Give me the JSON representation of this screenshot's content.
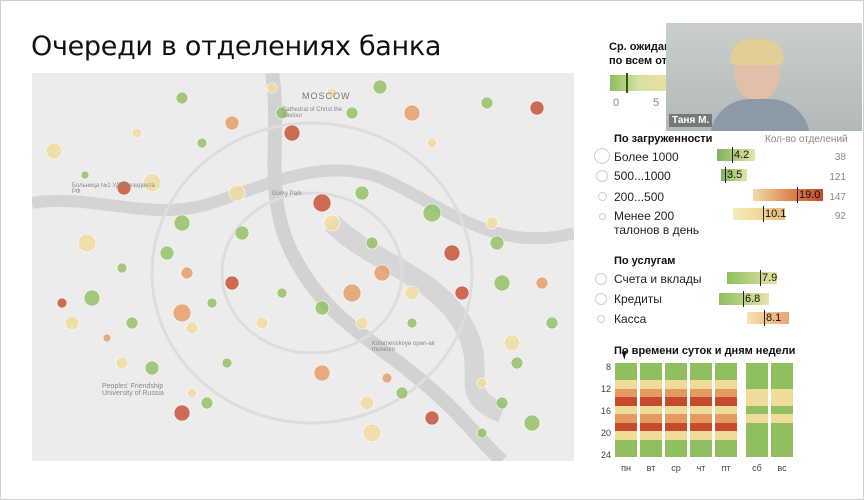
{
  "title": "Очереди в отделениях банка",
  "map": {
    "labels": {
      "moscow": "MOSCOW",
      "cathedral": "Cathedral of Christ the Saviour",
      "hospital": "Больница №1 УД Президента РФ",
      "university": "Peoples' Friendship University of Russia",
      "kolomenskoye": "Kolomenskoye open-air museum",
      "gorky": "Gorky Park"
    }
  },
  "legend": {
    "avg_title": "Ср. ожидание",
    "avg_sub": "по всем отд",
    "scale": [
      "0",
      "5"
    ],
    "load_title": "По загруженности",
    "count_header": "Кол-во отделений",
    "load_rows": [
      {
        "label": "Более 1000",
        "value": "4.2",
        "count": "38"
      },
      {
        "label": "500...1000",
        "value": "3.5",
        "count": "121"
      },
      {
        "label": "200...500",
        "value": "19.0",
        "count": "147"
      },
      {
        "label": "Менее 200",
        "label2": "талонов в день",
        "value": "10.1",
        "count": "92"
      }
    ],
    "services_title": "По услугам",
    "service_rows": [
      {
        "label": "Счета и вклады",
        "value": "7.9"
      },
      {
        "label": "Кредиты",
        "value": "6.8"
      },
      {
        "label": "Касса",
        "value": "8.1"
      }
    ],
    "time_title": "По времени суток и дням недели",
    "hours": [
      "8",
      "12",
      "16",
      "20",
      "24"
    ],
    "days": [
      "пн",
      "вт",
      "ср",
      "чт",
      "пт",
      "сб",
      "вс"
    ]
  },
  "video": {
    "name": "Таня М."
  },
  "colors": {
    "green": "#8fbf5f",
    "yellow": "#f0dc9a",
    "orange": "#e59a62",
    "red": "#c84a2c"
  }
}
